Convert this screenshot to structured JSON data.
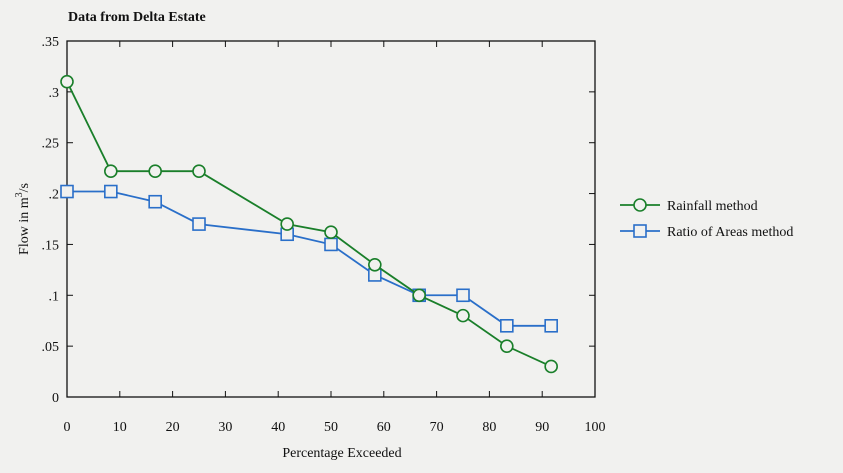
{
  "chart_data": {
    "type": "line",
    "title": "Data from Delta Estate",
    "xlabel": "Percentage Exceeded",
    "ylabel_prefix": "Flow in m",
    "ylabel_sup": "3",
    "ylabel_suffix": "/s",
    "xlim": [
      0,
      100
    ],
    "ylim": [
      0,
      0.35
    ],
    "x_ticks": [
      0,
      10,
      20,
      30,
      40,
      50,
      60,
      70,
      80,
      90,
      100
    ],
    "x_tick_labels": [
      "0",
      "10",
      "20",
      "30",
      "40",
      "50",
      "60",
      "70",
      "80",
      "90",
      "100"
    ],
    "y_ticks": [
      0,
      0.05,
      0.1,
      0.15,
      0.2,
      0.25,
      0.3,
      0.35
    ],
    "y_tick_labels": [
      "0",
      ".05",
      ".1",
      ".15",
      ".2",
      ".25",
      ".3",
      ".35"
    ],
    "grid": false,
    "legend_position": "right",
    "series": [
      {
        "name": "Rainfall method",
        "marker": "circle",
        "color": "#1a7f2a",
        "x": [
          0,
          8.3,
          16.7,
          25,
          41.7,
          50,
          58.3,
          66.7,
          75,
          83.3,
          91.7
        ],
        "y": [
          0.31,
          0.222,
          0.222,
          0.222,
          0.17,
          0.162,
          0.13,
          0.1,
          0.08,
          0.05,
          0.03
        ]
      },
      {
        "name": "Ratio of Areas method",
        "marker": "square",
        "color": "#2a6fc9",
        "x": [
          0,
          8.3,
          16.7,
          25,
          41.7,
          50,
          58.3,
          66.7,
          75,
          83.3,
          91.7
        ],
        "y": [
          0.202,
          0.202,
          0.192,
          0.17,
          0.16,
          0.15,
          0.12,
          0.1,
          0.1,
          0.07,
          0.07
        ]
      }
    ]
  }
}
